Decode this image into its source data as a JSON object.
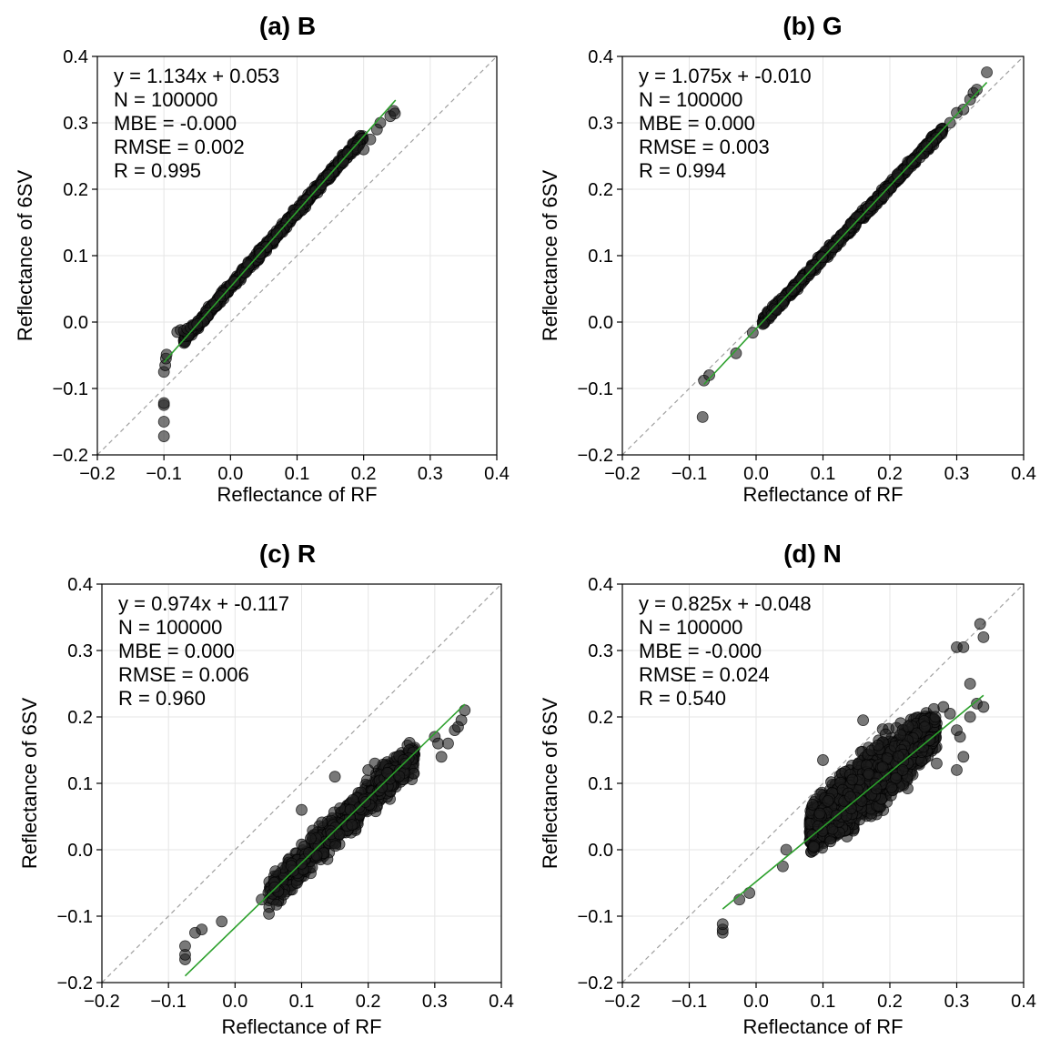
{
  "figure": {
    "panels_note": ""
  },
  "chart_data": [
    {
      "type": "scatter",
      "title": "(a) B",
      "xlabel": "Reflectance of RF",
      "ylabel": "Reflectance of 6SV",
      "xlim": [
        -0.2,
        0.4
      ],
      "ylim": [
        -0.2,
        0.4
      ],
      "xticks": [
        "−0.2",
        "−0.1",
        "0.0",
        "0.1",
        "0.2",
        "0.3",
        "0.4"
      ],
      "yticks": [
        "−0.2",
        "−0.1",
        "0.0",
        "0.1",
        "0.2",
        "0.3",
        "0.4"
      ],
      "grid": true,
      "stats": [
        "y = 1.134x + 0.053",
        "N = 100000",
        "MBE = -0.000",
        "RMSE = 0.002",
        "R = 0.995"
      ],
      "fit": {
        "slope": 1.134,
        "intercept": 0.053,
        "x_range": [
          -0.1,
          0.248
        ]
      },
      "cloud": {
        "shape": "band",
        "x_range": [
          -0.07,
          0.2
        ],
        "slope": 1.134,
        "intercept": 0.053,
        "spread": 0.004
      },
      "points": [
        [
          -0.1,
          -0.172
        ],
        [
          -0.1,
          -0.15
        ],
        [
          -0.1,
          -0.125
        ],
        [
          -0.1,
          -0.122
        ],
        [
          -0.1,
          -0.075
        ],
        [
          -0.098,
          -0.065
        ],
        [
          -0.097,
          -0.055
        ],
        [
          -0.096,
          -0.049
        ],
        [
          -0.08,
          -0.015
        ],
        [
          -0.075,
          -0.012
        ],
        [
          -0.07,
          -0.013
        ],
        [
          -0.065,
          -0.01
        ],
        [
          -0.06,
          -0.008
        ],
        [
          -0.055,
          -0.005
        ],
        [
          -0.05,
          -0.003
        ],
        [
          0.2,
          0.26
        ],
        [
          0.21,
          0.275
        ],
        [
          0.22,
          0.29
        ],
        [
          0.225,
          0.3
        ],
        [
          0.24,
          0.31
        ],
        [
          0.245,
          0.318
        ],
        [
          0.247,
          0.314
        ]
      ]
    },
    {
      "type": "scatter",
      "title": "(b) G",
      "xlabel": "Reflectance of RF",
      "ylabel": "Reflectance of 6SV",
      "xlim": [
        -0.2,
        0.4
      ],
      "ylim": [
        -0.2,
        0.4
      ],
      "xticks": [
        "−0.2",
        "−0.1",
        "0.0",
        "0.1",
        "0.2",
        "0.3",
        "0.4"
      ],
      "yticks": [
        "−0.2",
        "−0.1",
        "0.0",
        "0.1",
        "0.2",
        "0.3",
        "0.4"
      ],
      "grid": true,
      "stats": [
        "y = 1.075x + -0.010",
        "N = 100000",
        "MBE = 0.000",
        "RMSE = 0.003",
        "R = 0.994"
      ],
      "fit": {
        "slope": 1.075,
        "intercept": -0.01,
        "x_range": [
          -0.078,
          0.345
        ]
      },
      "cloud": {
        "shape": "band",
        "x_range": [
          0.01,
          0.28
        ],
        "slope": 1.075,
        "intercept": -0.01,
        "spread": 0.004
      },
      "points": [
        [
          -0.08,
          -0.143
        ],
        [
          -0.078,
          -0.088
        ],
        [
          -0.07,
          -0.08
        ],
        [
          -0.03,
          -0.047
        ],
        [
          -0.005,
          -0.016
        ],
        [
          0.01,
          -0.003
        ],
        [
          0.29,
          0.3
        ],
        [
          0.3,
          0.315
        ],
        [
          0.31,
          0.32
        ],
        [
          0.32,
          0.335
        ],
        [
          0.325,
          0.345
        ],
        [
          0.33,
          0.35
        ],
        [
          0.345,
          0.376
        ]
      ]
    },
    {
      "type": "scatter",
      "title": "(c) R",
      "xlabel": "Reflectance of RF",
      "ylabel": "Reflectance of 6SV",
      "xlim": [
        -0.2,
        0.4
      ],
      "ylim": [
        -0.2,
        0.4
      ],
      "xticks": [
        "−0.2",
        "−0.1",
        "0.0",
        "0.1",
        "0.2",
        "0.3",
        "0.4"
      ],
      "yticks": [
        "−0.2",
        "−0.1",
        "0.0",
        "0.1",
        "0.2",
        "0.3",
        "0.4"
      ],
      "grid": true,
      "stats": [
        "y = 0.974x + -0.117",
        "N = 100000",
        "MBE = 0.000",
        "RMSE = 0.006",
        "R = 0.960"
      ],
      "fit": {
        "slope": 0.974,
        "intercept": -0.117,
        "x_range": [
          -0.075,
          0.345
        ]
      },
      "cloud": {
        "shape": "band",
        "x_range": [
          0.05,
          0.27
        ],
        "slope": 0.974,
        "intercept": -0.117,
        "spread": 0.018
      },
      "points": [
        [
          -0.075,
          -0.165
        ],
        [
          -0.075,
          -0.158
        ],
        [
          -0.075,
          -0.145
        ],
        [
          -0.06,
          -0.125
        ],
        [
          -0.05,
          -0.12
        ],
        [
          -0.02,
          -0.108
        ],
        [
          0.04,
          -0.075
        ],
        [
          0.1,
          0.06
        ],
        [
          0.15,
          0.11
        ],
        [
          0.2,
          0.12
        ],
        [
          0.21,
          0.13
        ],
        [
          0.3,
          0.17
        ],
        [
          0.305,
          0.16
        ],
        [
          0.31,
          0.14
        ],
        [
          0.32,
          0.16
        ],
        [
          0.33,
          0.18
        ],
        [
          0.34,
          0.195
        ],
        [
          0.345,
          0.21
        ],
        [
          0.335,
          0.185
        ]
      ]
    },
    {
      "type": "scatter",
      "title": "(d) N",
      "xlabel": "Reflectance of RF",
      "ylabel": "Reflectance of 6SV",
      "xlim": [
        -0.2,
        0.4
      ],
      "ylim": [
        -0.2,
        0.4
      ],
      "xticks": [
        "−0.2",
        "−0.1",
        "0.0",
        "0.1",
        "0.2",
        "0.3",
        "0.4"
      ],
      "yticks": [
        "−0.2",
        "−0.1",
        "0.0",
        "0.1",
        "0.2",
        "0.3",
        "0.4"
      ],
      "grid": true,
      "stats": [
        "y = 0.825x + -0.048",
        "N = 100000",
        "MBE = -0.000",
        "RMSE = 0.024",
        "R = 0.540"
      ],
      "fit": {
        "slope": 0.825,
        "intercept": -0.048,
        "x_range": [
          -0.05,
          0.34
        ]
      },
      "cloud": {
        "shape": "blob",
        "x_range": [
          0.08,
          0.27
        ],
        "slope": 0.825,
        "intercept": -0.048,
        "spread": 0.045
      },
      "points": [
        [
          -0.05,
          -0.125
        ],
        [
          -0.05,
          -0.12
        ],
        [
          -0.05,
          -0.112
        ],
        [
          -0.025,
          -0.075
        ],
        [
          -0.01,
          -0.065
        ],
        [
          0.04,
          -0.025
        ],
        [
          0.045,
          0.0
        ],
        [
          0.16,
          0.195
        ],
        [
          0.25,
          0.155
        ],
        [
          0.26,
          0.165
        ],
        [
          0.27,
          0.13
        ],
        [
          0.28,
          0.215
        ],
        [
          0.29,
          0.205
        ],
        [
          0.3,
          0.18
        ],
        [
          0.305,
          0.17
        ],
        [
          0.31,
          0.14
        ],
        [
          0.32,
          0.2
        ],
        [
          0.33,
          0.22
        ],
        [
          0.335,
          0.34
        ],
        [
          0.34,
          0.32
        ],
        [
          0.34,
          0.215
        ],
        [
          0.3,
          0.305
        ],
        [
          0.31,
          0.305
        ],
        [
          0.32,
          0.25
        ],
        [
          0.1,
          0.135
        ],
        [
          0.3,
          0.12
        ]
      ]
    }
  ]
}
